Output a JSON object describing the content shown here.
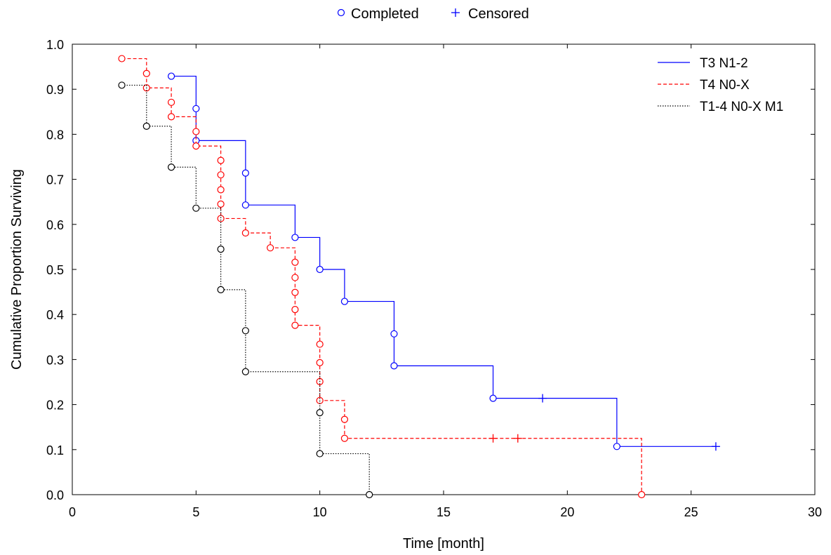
{
  "chart_data": {
    "type": "line",
    "step": true,
    "xlabel": "Time [month]",
    "ylabel": "Cumulative Proportion Surviving",
    "xlim": [
      0,
      30
    ],
    "ylim": [
      0.0,
      1.0
    ],
    "xticks": [
      0,
      5,
      10,
      15,
      20,
      25,
      30
    ],
    "yticks": [
      0.0,
      0.1,
      0.2,
      0.3,
      0.4,
      0.5,
      0.6,
      0.7,
      0.8,
      0.9,
      1.0
    ],
    "ytick_labels": [
      "0.0",
      "0.1",
      "0.2",
      "0.3",
      "0.4",
      "0.5",
      "0.6",
      "0.7",
      "0.8",
      "0.9",
      "1.0"
    ],
    "grid": false,
    "marker_legend": {
      "completed": "Completed",
      "censored": "Censored",
      "position": "top-center"
    },
    "legend_position": "top-right",
    "series": [
      {
        "name": "T3 N1-2",
        "color": "#0000ff",
        "dash": "solid",
        "steps": [
          [
            4,
            0.929
          ],
          [
            5,
            0.786
          ],
          [
            7,
            0.643
          ],
          [
            9,
            0.571
          ],
          [
            10,
            0.5
          ],
          [
            11,
            0.429
          ],
          [
            13,
            0.286
          ],
          [
            17,
            0.214
          ],
          [
            22,
            0.107
          ]
        ],
        "end_x": 26,
        "completed": [
          [
            4,
            0.929
          ],
          [
            5,
            0.857
          ],
          [
            5,
            0.786
          ],
          [
            7,
            0.714
          ],
          [
            7,
            0.643
          ],
          [
            9,
            0.571
          ],
          [
            10,
            0.5
          ],
          [
            11,
            0.429
          ],
          [
            13,
            0.357
          ],
          [
            13,
            0.286
          ],
          [
            17,
            0.214
          ],
          [
            22,
            0.107
          ]
        ],
        "censored": [
          [
            19,
            0.214
          ],
          [
            26,
            0.107
          ]
        ]
      },
      {
        "name": "T4 N0-X",
        "color": "#ff0000",
        "dash": "dashed",
        "steps": [
          [
            2,
            0.968
          ],
          [
            3,
            0.903
          ],
          [
            4,
            0.839
          ],
          [
            5,
            0.774
          ],
          [
            6,
            0.613
          ],
          [
            7,
            0.581
          ],
          [
            8,
            0.548
          ],
          [
            9,
            0.376
          ],
          [
            10,
            0.209
          ],
          [
            11,
            0.125
          ],
          [
            23,
            0.0
          ]
        ],
        "end_x": 23,
        "completed": [
          [
            2,
            0.968
          ],
          [
            3,
            0.935
          ],
          [
            3,
            0.903
          ],
          [
            4,
            0.871
          ],
          [
            4,
            0.839
          ],
          [
            5,
            0.806
          ],
          [
            5,
            0.774
          ],
          [
            6,
            0.742
          ],
          [
            6,
            0.71
          ],
          [
            6,
            0.677
          ],
          [
            6,
            0.645
          ],
          [
            6,
            0.613
          ],
          [
            7,
            0.581
          ],
          [
            8,
            0.548
          ],
          [
            9,
            0.516
          ],
          [
            9,
            0.482
          ],
          [
            9,
            0.449
          ],
          [
            9,
            0.411
          ],
          [
            9,
            0.376
          ],
          [
            10,
            0.334
          ],
          [
            10,
            0.293
          ],
          [
            10,
            0.251
          ],
          [
            10,
            0.209
          ],
          [
            11,
            0.167
          ],
          [
            11,
            0.125
          ],
          [
            23,
            0.0
          ]
        ],
        "censored": [
          [
            17,
            0.125
          ],
          [
            18,
            0.125
          ]
        ]
      },
      {
        "name": "T1-4 N0-X M1",
        "color": "#000000",
        "dash": "dotted",
        "steps": [
          [
            2,
            0.909
          ],
          [
            3,
            0.818
          ],
          [
            4,
            0.727
          ],
          [
            5,
            0.636
          ],
          [
            6,
            0.455
          ],
          [
            7,
            0.273
          ],
          [
            10,
            0.091
          ],
          [
            12,
            0.0
          ]
        ],
        "end_x": 12,
        "completed": [
          [
            2,
            0.909
          ],
          [
            3,
            0.818
          ],
          [
            4,
            0.727
          ],
          [
            5,
            0.636
          ],
          [
            6,
            0.545
          ],
          [
            6,
            0.455
          ],
          [
            7,
            0.364
          ],
          [
            7,
            0.273
          ],
          [
            10,
            0.182
          ],
          [
            10,
            0.091
          ],
          [
            12,
            0.0
          ]
        ],
        "censored": []
      }
    ]
  }
}
